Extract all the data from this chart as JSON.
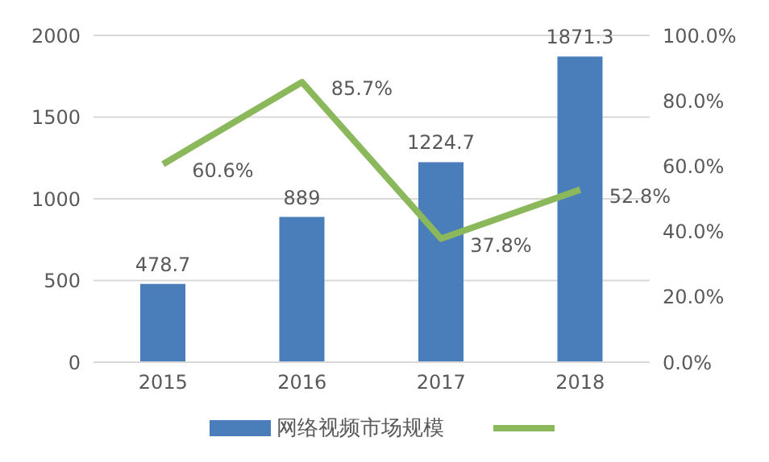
{
  "chart_data": {
    "type": "bar",
    "categories": [
      "2015",
      "2016",
      "2017",
      "2018"
    ],
    "series": [
      {
        "name": "网络视频市场规模",
        "color": "#4a7ebb",
        "values": [
          478.7,
          889,
          1224.7,
          1871.3
        ],
        "value_labels": [
          "478.7",
          "889",
          "1224.7",
          "1871.3"
        ]
      },
      {
        "type": "line",
        "axis": "y2",
        "color": "#8cb85c",
        "values": [
          60.6,
          85.7,
          37.8,
          52.8
        ],
        "value_labels": [
          "60.6%",
          "85.7%",
          "37.8%",
          "52.8%"
        ]
      }
    ],
    "ylim": [
      0,
      2000
    ],
    "yticks": [
      0,
      500,
      1000,
      1500,
      2000
    ],
    "y2lim": [
      0,
      100
    ],
    "y2ticks": [
      {
        "value": 0,
        "label": "0.0%"
      },
      {
        "value": 20,
        "label": "20.0%"
      },
      {
        "value": 40,
        "label": "40.0%"
      },
      {
        "value": 60,
        "label": "60.0%"
      },
      {
        "value": 80,
        "label": "80.0%"
      },
      {
        "value": 100,
        "label": "100.0%"
      }
    ],
    "grid": "y",
    "legend": "bottom",
    "marker": "none"
  }
}
